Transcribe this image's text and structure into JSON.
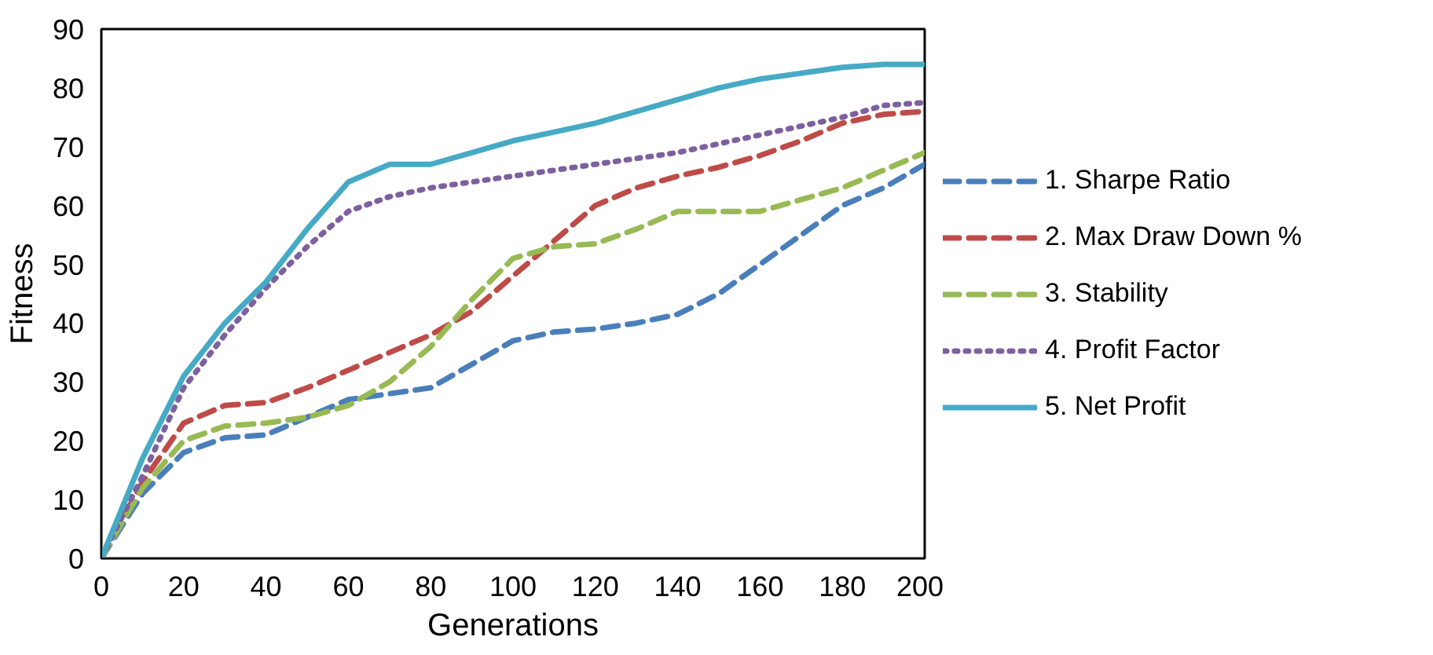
{
  "chart_data": {
    "type": "line",
    "xlabel": "Generations",
    "ylabel": "Fitness",
    "x": [
      0,
      10,
      20,
      30,
      40,
      50,
      60,
      70,
      80,
      90,
      100,
      110,
      120,
      130,
      140,
      150,
      160,
      170,
      180,
      190,
      200
    ],
    "xlim": [
      0,
      200
    ],
    "xticks": [
      0,
      20,
      40,
      60,
      80,
      100,
      120,
      140,
      160,
      180,
      200
    ],
    "ylim": [
      0,
      90
    ],
    "yticks": [
      0,
      10,
      20,
      30,
      40,
      50,
      60,
      70,
      80,
      90
    ],
    "grid": false,
    "legend": "right",
    "marker": "none",
    "series": [
      {
        "name": "1. Sharpe Ratio",
        "color": "#4a7ebb",
        "line_style": "dashed",
        "values": [
          0,
          11,
          18,
          20.5,
          21,
          24,
          27,
          28,
          29,
          33,
          37,
          38.5,
          39,
          40,
          41.5,
          45,
          50,
          55,
          60,
          63,
          67
        ]
      },
      {
        "name": "2. Max Draw Down %",
        "color": "#be4b48",
        "line_style": "dashed",
        "values": [
          0,
          13,
          23,
          26,
          26.5,
          29,
          32,
          35,
          38,
          42,
          48,
          54,
          60,
          63,
          65,
          66.5,
          68.5,
          71,
          74,
          75.5,
          76
        ]
      },
      {
        "name": "3. Stability",
        "color": "#98b954",
        "line_style": "dashed",
        "values": [
          0,
          12,
          20,
          22.5,
          23,
          24,
          26,
          30,
          36,
          44,
          51,
          53,
          53.5,
          56,
          59,
          59,
          59,
          61,
          63,
          66,
          69
        ]
      },
      {
        "name": "4. Profit Factor",
        "color": "#7d60a0",
        "line_style": "dotted",
        "values": [
          0,
          14,
          29,
          38,
          46,
          53,
          59,
          61.5,
          63,
          64,
          65,
          66,
          67,
          68,
          69,
          70.5,
          72,
          73.5,
          75,
          77,
          77.5
        ]
      },
      {
        "name": "5. Net Profit",
        "color": "#46aac5",
        "line_style": "solid",
        "values": [
          0,
          17,
          31,
          40,
          47,
          56,
          64,
          67,
          67,
          69,
          71,
          72.5,
          74,
          76,
          78,
          80,
          81.5,
          82.5,
          83.5,
          84,
          84
        ]
      }
    ]
  }
}
